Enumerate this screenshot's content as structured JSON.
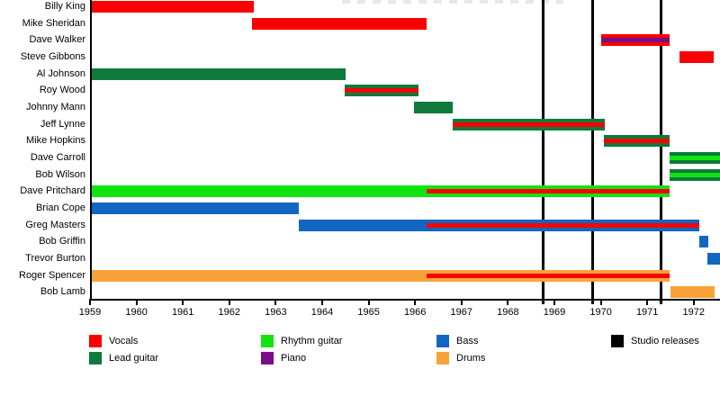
{
  "chart_data": {
    "type": "timeline",
    "title": "",
    "xlabel": "",
    "ylabel": "",
    "x_axis": {
      "start_year": 1959,
      "right_edge_year": 1972.6,
      "tick_years": [
        1959,
        1960,
        1961,
        1962,
        1963,
        1964,
        1965,
        1966,
        1967,
        1968,
        1969,
        1970,
        1971,
        1972
      ]
    },
    "colors": {
      "vocals": "#fa0000",
      "lead_guitar": "#0e7a3c",
      "rhythm_guitar": "#12e412",
      "piano": "#7b0d86",
      "bass": "#1166c1",
      "drums": "#f9a23a",
      "releases": "#000000"
    },
    "members": [
      {
        "name": "Billy King",
        "segments": [
          {
            "from": 1959.0,
            "to": 1962.52,
            "color": "vocals"
          }
        ]
      },
      {
        "name": "Mike Sheridan",
        "segments": [
          {
            "from": 1962.49,
            "to": 1966.24,
            "color": "vocals"
          }
        ]
      },
      {
        "name": "Dave Walker",
        "segments": [
          {
            "from": 1970.0,
            "to": 1971.49,
            "color": "vocals",
            "stripe": "piano"
          }
        ]
      },
      {
        "name": "Steve Gibbons",
        "segments": [
          {
            "from": 1971.69,
            "to": 1972.43,
            "color": "vocals"
          }
        ]
      },
      {
        "name": "Al Johnson",
        "segments": [
          {
            "from": 1959.0,
            "to": 1964.5,
            "color": "lead_guitar"
          }
        ]
      },
      {
        "name": "Roy Wood",
        "segments": [
          {
            "from": 1964.48,
            "to": 1966.07,
            "color": "lead_guitar",
            "stripe": "vocals"
          }
        ]
      },
      {
        "name": "Johnny Mann",
        "segments": [
          {
            "from": 1965.97,
            "to": 1966.81,
            "color": "lead_guitar"
          }
        ]
      },
      {
        "name": "Jeff Lynne",
        "segments": [
          {
            "from": 1966.81,
            "to": 1970.09,
            "color": "lead_guitar",
            "stripe": "vocals"
          }
        ]
      },
      {
        "name": "Mike Hopkins",
        "segments": [
          {
            "from": 1970.06,
            "to": 1971.49,
            "color": "lead_guitar",
            "stripe": "vocals"
          }
        ]
      },
      {
        "name": "Dave Carroll",
        "segments": [
          {
            "from": 1971.48,
            "to": 1972.6,
            "color": "lead_guitar",
            "stripe": "rhythm_guitar",
            "cut_at_right_edge": true
          }
        ]
      },
      {
        "name": "Bob Wilson",
        "segments": [
          {
            "from": 1971.48,
            "to": 1972.6,
            "color": "lead_guitar",
            "stripe": "rhythm_guitar",
            "cut_at_right_edge": true
          }
        ]
      },
      {
        "name": "Dave Pritchard",
        "segments": [
          {
            "from": 1959.0,
            "to": 1971.48,
            "color": "rhythm_guitar",
            "stripe": "vocals",
            "stripe_from": 1966.24
          }
        ]
      },
      {
        "name": "Brian Cope",
        "segments": [
          {
            "from": 1959.0,
            "to": 1963.49,
            "color": "bass"
          }
        ]
      },
      {
        "name": "Greg Masters",
        "segments": [
          {
            "from": 1963.49,
            "to": 1972.12,
            "color": "bass",
            "stripe": "vocals",
            "stripe_from": 1966.25
          }
        ]
      },
      {
        "name": "Bob Griffin",
        "segments": [
          {
            "from": 1972.11,
            "to": 1972.31,
            "color": "bass"
          }
        ]
      },
      {
        "name": "Trevor Burton",
        "segments": [
          {
            "from": 1972.29,
            "to": 1972.6,
            "color": "bass",
            "cut_at_right_edge": true
          }
        ]
      },
      {
        "name": "Roger Spencer",
        "segments": [
          {
            "from": 1959.0,
            "to": 1971.48,
            "color": "drums",
            "stripe": "vocals",
            "stripe_from": 1966.25
          }
        ]
      },
      {
        "name": "Bob Lamb",
        "segments": [
          {
            "from": 1971.49,
            "to": 1972.44,
            "color": "drums"
          }
        ]
      }
    ],
    "studio_release_years": [
      1968.75,
      1969.83,
      1971.3
    ],
    "legend": [
      {
        "label": "Vocals",
        "color_key": "vocals",
        "col": 0,
        "row": 0
      },
      {
        "label": "Lead guitar",
        "color_key": "lead_guitar",
        "col": 0,
        "row": 1
      },
      {
        "label": "Rhythm guitar",
        "color_key": "rhythm_guitar",
        "col": 1,
        "row": 0
      },
      {
        "label": "Piano",
        "color_key": "piano",
        "col": 1,
        "row": 1
      },
      {
        "label": "Bass",
        "color_key": "bass",
        "col": 2,
        "row": 0
      },
      {
        "label": "Drums",
        "color_key": "drums",
        "col": 2,
        "row": 1
      },
      {
        "label": "Studio releases",
        "color_key": "releases",
        "col": 3,
        "row": 0
      }
    ],
    "legend_position": "bottom",
    "grid": false
  }
}
